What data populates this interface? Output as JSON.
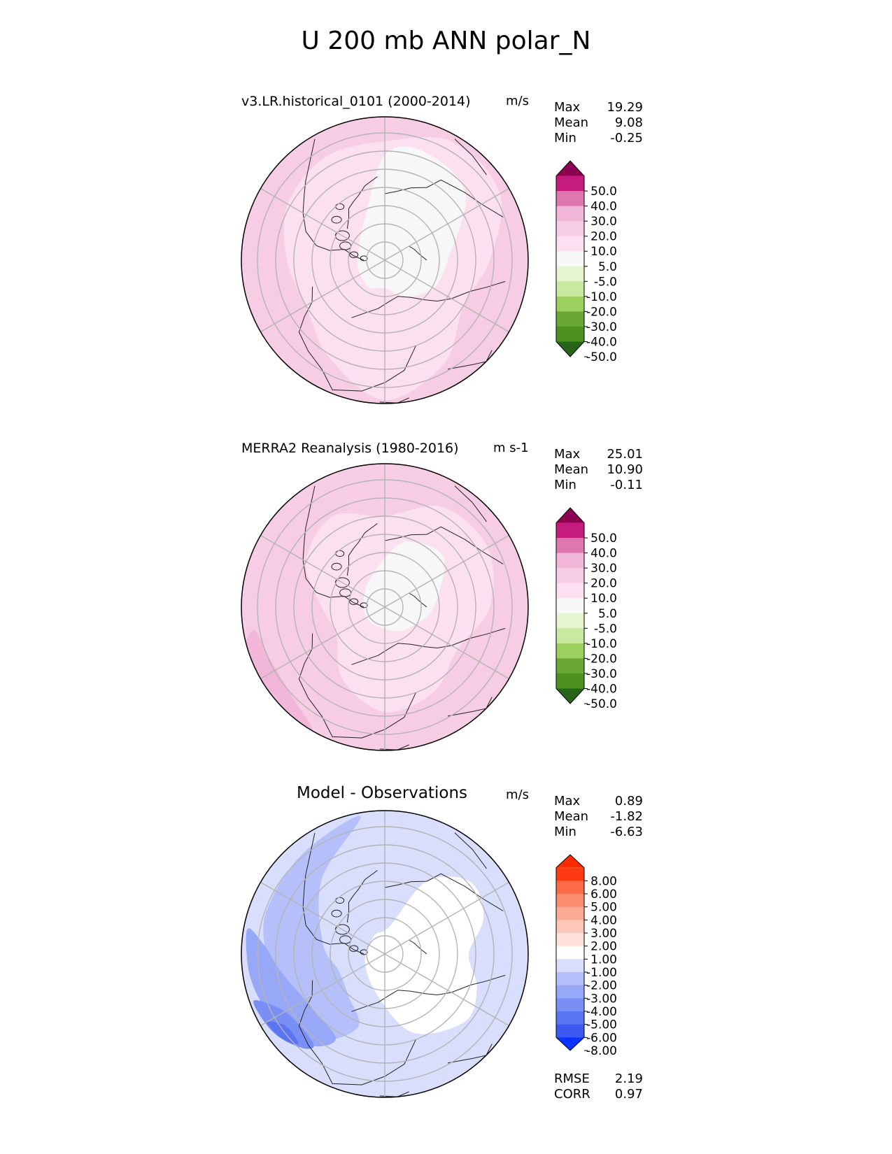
{
  "figure": {
    "title": "U 200 mb ANN polar_N"
  },
  "panels": [
    {
      "id": "test",
      "title": "v3.LR.historical_0101 (2000-2014)",
      "units": "m/s",
      "stats": [
        {
          "label": "Max",
          "value": "19.29"
        },
        {
          "label": "Mean",
          "value": "9.08"
        },
        {
          "label": "Min",
          "value": "-0.25"
        }
      ]
    },
    {
      "id": "reference",
      "title": "MERRA2 Reanalysis (1980-2016)",
      "units": "m s-1",
      "stats": [
        {
          "label": "Max",
          "value": "25.01"
        },
        {
          "label": "Mean",
          "value": "10.90"
        },
        {
          "label": "Min",
          "value": "-0.11"
        }
      ]
    },
    {
      "id": "diff",
      "title": "Model - Observations",
      "units": "m/s",
      "stats": [
        {
          "label": "Max",
          "value": "0.89"
        },
        {
          "label": "Mean",
          "value": "-1.82"
        },
        {
          "label": "Min",
          "value": "-6.63"
        }
      ],
      "metrics": [
        {
          "label": "RMSE",
          "value": "2.19"
        },
        {
          "label": "CORR",
          "value": "0.97"
        }
      ]
    }
  ],
  "chart_data": [
    {
      "type": "heatmap",
      "projection": "north polar stereographic",
      "title": "v3.LR.historical_0101 (2000-2014)",
      "units": "m/s",
      "max": 19.29,
      "mean": 9.08,
      "min": -0.25,
      "colorbar": {
        "ticks": [
          "50.0",
          "40.0",
          "30.0",
          "20.0",
          "10.0",
          "5.0",
          "-5.0",
          "-10.0",
          "-20.0",
          "-30.0",
          "-40.0",
          "-50.0"
        ],
        "bounds": [
          -50,
          -40,
          -30,
          -20,
          -10,
          -5,
          5,
          10,
          20,
          30,
          40,
          50
        ],
        "colors": [
          "#8e0152",
          "#c51b7d",
          "#de77ae",
          "#f1b6da",
          "#f7cde6",
          "#fde0ef",
          "#f7f7f7",
          "#e6f5d0",
          "#c9e9a0",
          "#9bcf5e",
          "#6aa735",
          "#4d9221",
          "#276419"
        ],
        "extend": "both"
      }
    },
    {
      "type": "heatmap",
      "projection": "north polar stereographic",
      "title": "MERRA2 Reanalysis (1980-2016)",
      "units": "m s-1",
      "max": 25.01,
      "mean": 10.9,
      "min": -0.11,
      "colorbar": {
        "ticks": [
          "50.0",
          "40.0",
          "30.0",
          "20.0",
          "10.0",
          "5.0",
          "-5.0",
          "-10.0",
          "-20.0",
          "-30.0",
          "-40.0",
          "-50.0"
        ],
        "bounds": [
          -50,
          -40,
          -30,
          -20,
          -10,
          -5,
          5,
          10,
          20,
          30,
          40,
          50
        ],
        "colors": [
          "#8e0152",
          "#c51b7d",
          "#de77ae",
          "#f1b6da",
          "#f7cde6",
          "#fde0ef",
          "#f7f7f7",
          "#e6f5d0",
          "#c9e9a0",
          "#9bcf5e",
          "#6aa735",
          "#4d9221",
          "#276419"
        ],
        "extend": "both"
      }
    },
    {
      "type": "heatmap",
      "projection": "north polar stereographic",
      "title": "Model - Observations",
      "units": "m/s",
      "max": 0.89,
      "mean": -1.82,
      "min": -6.63,
      "rmse": 2.19,
      "corr": 0.97,
      "colorbar": {
        "ticks": [
          "8.00",
          "6.00",
          "5.00",
          "4.00",
          "3.00",
          "2.00",
          "1.00",
          "-1.00",
          "-2.00",
          "-3.00",
          "-4.00",
          "-5.00",
          "-6.00",
          "-8.00"
        ],
        "bounds": [
          -8,
          -6,
          -5,
          -4,
          -3,
          -2,
          -1,
          1,
          2,
          3,
          4,
          5,
          6,
          8
        ],
        "colors": [
          "#ff2a00",
          "#ff3b12",
          "#ff6a48",
          "#fc8d70",
          "#fcac95",
          "#fdc7b8",
          "#fde1da",
          "#ffffff",
          "#d9defc",
          "#b5c0fa",
          "#98a8f8",
          "#7a8ff6",
          "#5a74f4",
          "#3c5af2",
          "#0a33ff"
        ],
        "extend": "both"
      }
    }
  ]
}
